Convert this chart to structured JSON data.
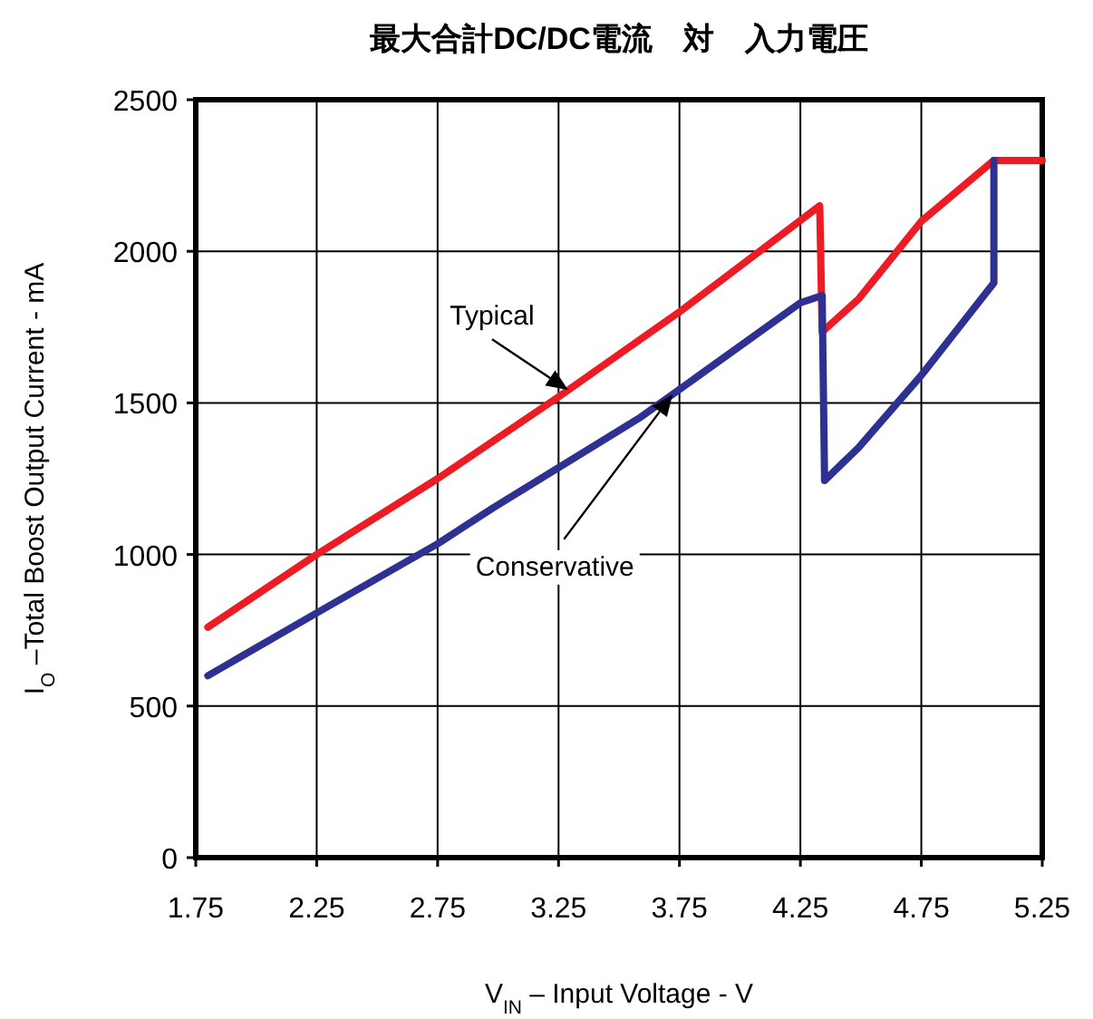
{
  "chart_data": {
    "type": "line",
    "title": "最大合計DC/DC電流　対　入力電圧",
    "xlabel": "V$_{IN}$ – Input Voltage - V",
    "ylabel": "I$_{O}$ –Total Boost Output Current - mA",
    "xlim": [
      1.75,
      5.25
    ],
    "xticks": [
      1.75,
      2.25,
      2.75,
      3.25,
      3.75,
      4.25,
      4.75,
      5.25
    ],
    "ylim": [
      0,
      2500
    ],
    "yticks": [
      0,
      500,
      1000,
      1500,
      2000,
      2500
    ],
    "grid": true,
    "marker": "none",
    "line_style": "solid",
    "series": [
      {
        "name": "Typical",
        "color": "#ed1c24",
        "x": [
          1.8,
          2.25,
          2.75,
          3.25,
          3.75,
          4.33,
          4.34,
          4.49,
          4.75,
          5.05,
          5.25
        ],
        "values": [
          760,
          1000,
          1250,
          1520,
          1800,
          2150,
          1734,
          1842,
          2099,
          2300,
          2300
        ]
      },
      {
        "name": "Conservative",
        "color": "#2e3192",
        "x": [
          1.8,
          2.25,
          2.75,
          2.98,
          3.59,
          4.25,
          4.34,
          4.35,
          4.49,
          4.75,
          5.05,
          5.05
        ],
        "values": [
          600,
          807,
          1035,
          1154,
          1453,
          1830,
          1854,
          1244,
          1352,
          1591,
          1896,
          2300
        ]
      }
    ]
  }
}
